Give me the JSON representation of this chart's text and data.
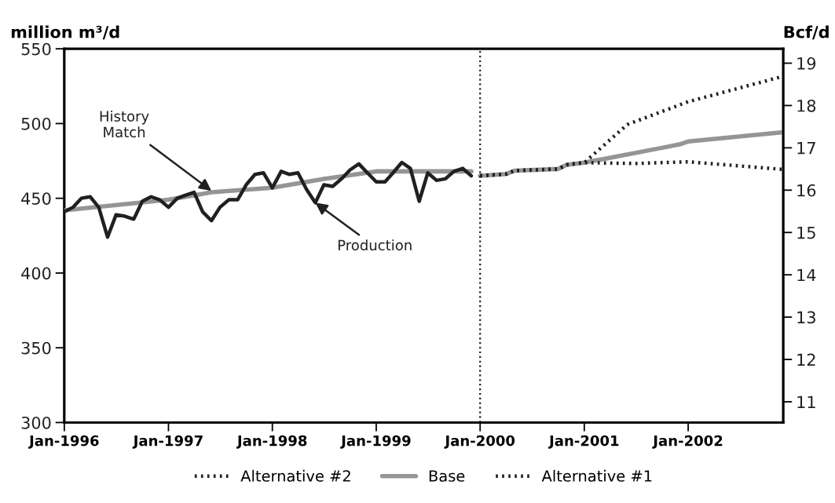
{
  "chart_data": {
    "type": "line",
    "ylabel": "million m³/d",
    "y2label": "Bcf/d",
    "xlim": [
      "1996-01",
      "2002-12"
    ],
    "xticks": [
      {
        "value": "1996-01",
        "label": "Jan-1996"
      },
      {
        "value": "1997-01",
        "label": "Jan-1997"
      },
      {
        "value": "1998-01",
        "label": "Jan-1998"
      },
      {
        "value": "1999-01",
        "label": "Jan-1999"
      },
      {
        "value": "2000-01",
        "label": "Jan-2000"
      },
      {
        "value": "2001-01",
        "label": "Jan-2001"
      },
      {
        "value": "2002-01",
        "label": "Jan-2002"
      }
    ],
    "ylim": [
      300,
      550
    ],
    "yticks": [
      300,
      350,
      400,
      450,
      500,
      550
    ],
    "y2lim": [
      10.51,
      19.34
    ],
    "y2ticks": [
      11,
      12,
      13,
      14,
      15,
      16,
      17,
      18,
      19
    ],
    "grid": false,
    "legend": "bottom",
    "marker": "none",
    "series": [
      {
        "color": "#939598",
        "line_style": "solid",
        "x": [
          "1996-01",
          "1997-01",
          "1997-06",
          "1998-01",
          "1998-07",
          "1999-01",
          "1999-07",
          "1999-12"
        ],
        "values": [
          442,
          449,
          454,
          457,
          463,
          468,
          468,
          468
        ]
      },
      {
        "color": "#231f20",
        "line_style": "solid",
        "x": [
          "1996-01",
          "1996-02",
          "1996-03",
          "1996-04",
          "1996-05",
          "1996-06",
          "1996-07",
          "1996-08",
          "1996-09",
          "1996-10",
          "1996-11",
          "1996-12",
          "1997-01",
          "1997-02",
          "1997-03",
          "1997-04",
          "1997-05",
          "1997-06",
          "1997-07",
          "1997-08",
          "1997-09",
          "1997-10",
          "1997-11",
          "1997-12",
          "1998-01",
          "1998-02",
          "1998-03",
          "1998-04",
          "1998-05",
          "1998-06",
          "1998-07",
          "1998-08",
          "1998-09",
          "1998-10",
          "1998-11",
          "1998-12",
          "1999-01",
          "1999-02",
          "1999-03",
          "1999-04",
          "1999-05",
          "1999-06",
          "1999-07",
          "1999-08",
          "1999-09",
          "1999-10",
          "1999-11",
          "1999-12"
        ],
        "values": [
          441,
          444,
          450,
          451,
          444,
          424,
          439,
          438,
          436,
          448,
          451,
          449,
          444,
          450,
          452,
          454,
          441,
          435,
          444,
          449,
          449,
          459,
          466,
          467,
          457,
          468,
          466,
          467,
          456,
          447,
          459,
          458,
          463,
          469,
          473,
          467,
          461,
          461,
          467,
          474,
          470,
          448,
          467,
          462,
          463,
          468,
          470,
          465
        ]
      },
      {
        "name": "Alternative #2",
        "color": "#231f20",
        "line_style": "dotted",
        "axis": "y2",
        "x": [
          "2000-01",
          "2000-04",
          "2000-05",
          "2000-10",
          "2000-11",
          "2001-01",
          "2001-06",
          "2002-01",
          "2002-12"
        ],
        "values": [
          16.34,
          16.38,
          16.46,
          16.5,
          16.6,
          16.65,
          17.55,
          18.09,
          18.69
        ]
      },
      {
        "name": "Base",
        "color": "#939598",
        "line_style": "solid",
        "axis": "y2",
        "x": [
          "2000-01",
          "2000-04",
          "2000-05",
          "2000-10",
          "2000-11",
          "2001-01",
          "2001-10",
          "2001-12",
          "2002-01",
          "2002-12"
        ],
        "values": [
          16.34,
          16.38,
          16.46,
          16.5,
          16.6,
          16.65,
          17.0,
          17.08,
          17.15,
          17.37
        ]
      },
      {
        "name": "Alternative #1",
        "color": "#231f20",
        "line_style": "dotted",
        "axis": "y2",
        "x": [
          "2000-01",
          "2000-04",
          "2000-05",
          "2000-10",
          "2000-11",
          "2001-01",
          "2001-07",
          "2002-01",
          "2002-12"
        ],
        "values": [
          16.34,
          16.38,
          16.46,
          16.5,
          16.6,
          16.65,
          16.63,
          16.67,
          16.49
        ]
      }
    ],
    "ref_lines": [
      {
        "axis": "x",
        "value": "2000-01",
        "color": "#231f20",
        "line_style": "dotted"
      }
    ],
    "annotations": [
      {
        "text": "History\nMatch",
        "x": "1997-06",
        "y": 455
      },
      {
        "text": "Production",
        "x": "1998-06",
        "y": 447
      }
    ]
  }
}
